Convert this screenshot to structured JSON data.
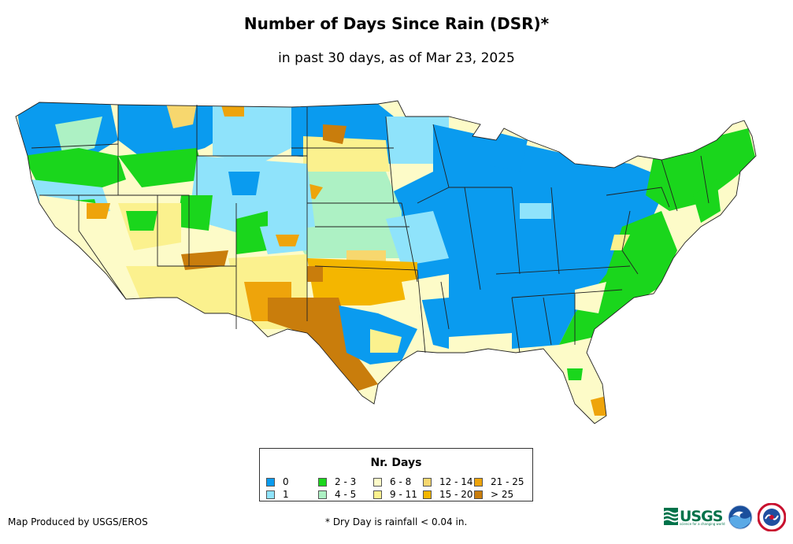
{
  "header": {
    "title": "Number of Days Since Rain (DSR)*",
    "subtitle": "in past 30 days, as of Mar 23, 2025"
  },
  "legend": {
    "title": "Nr. Days",
    "items": [
      {
        "label": "0",
        "color": "#0a9bef"
      },
      {
        "label": "1",
        "color": "#8fe3fb"
      },
      {
        "label": "2 - 3",
        "color": "#1ad61c"
      },
      {
        "label": "4 - 5",
        "color": "#adf1c4"
      },
      {
        "label": "6 - 8",
        "color": "#fdfbc8"
      },
      {
        "label": "9 - 11",
        "color": "#fbf18e"
      },
      {
        "label": "12 - 14",
        "color": "#f7d76e"
      },
      {
        "label": "15 - 20",
        "color": "#f4b600"
      },
      {
        "label": "21 - 25",
        "color": "#eea40b"
      },
      {
        "label": "> 25",
        "color": "#c97d0c"
      }
    ]
  },
  "footer": {
    "credit": "Map Produced by USGS/EROS",
    "note": "* Dry Day is rainfall < 0.04 in."
  },
  "logos": {
    "usgs_text": "USGS",
    "usgs_tagline": "science for a changing world"
  }
}
